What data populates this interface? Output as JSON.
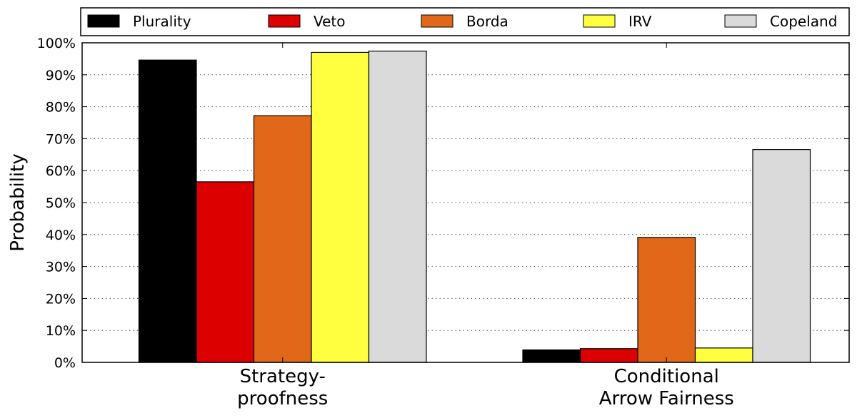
{
  "chart_data": {
    "type": "bar",
    "ylabel": "Probability",
    "ylim": [
      0,
      100
    ],
    "y_ticks": [
      "0%",
      "10%",
      "20%",
      "30%",
      "40%",
      "50%",
      "60%",
      "70%",
      "80%",
      "90%",
      "100%"
    ],
    "grid": "horizontal dotted",
    "legend_position": "top",
    "categories": [
      [
        "Strategy-",
        "proofness"
      ],
      [
        "Conditional",
        "Arrow Fairness"
      ]
    ],
    "series": [
      {
        "name": "Plurality",
        "color": "#000000",
        "values": [
          94.6,
          3.9
        ]
      },
      {
        "name": "Veto",
        "color": "#dd0000",
        "values": [
          56.5,
          4.3
        ]
      },
      {
        "name": "Borda",
        "color": "#e06818",
        "values": [
          77.2,
          39.1
        ]
      },
      {
        "name": "IRV",
        "color": "#ffff40",
        "values": [
          97.0,
          4.5
        ]
      },
      {
        "name": "Copeland",
        "color": "#dadada",
        "values": [
          97.4,
          66.6
        ]
      }
    ]
  }
}
